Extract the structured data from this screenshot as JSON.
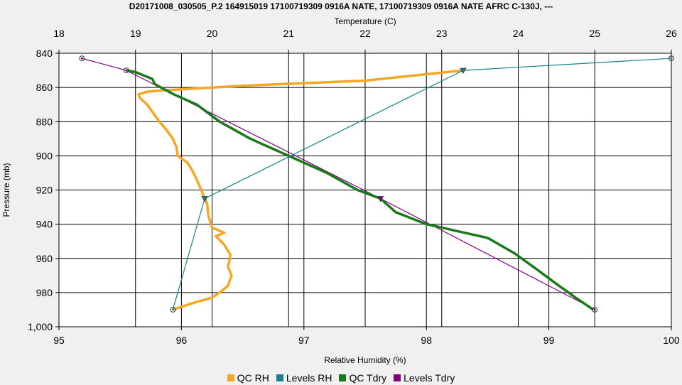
{
  "chart_data": {
    "type": "line",
    "title": "D20171008_030505_P.2 164915019 17100719309 0916A NATE, 17100719309 0916A NATE AFRC C-130J, ---",
    "top_axis": {
      "label": "Temperature (C)",
      "range": [
        18,
        26
      ],
      "ticks": [
        "18",
        "19",
        "20",
        "21",
        "22",
        "23",
        "24",
        "25",
        "26"
      ]
    },
    "bottom_axis": {
      "label": "Relative Humidity (%)",
      "range": [
        95,
        100
      ],
      "ticks": [
        "95",
        "96",
        "97",
        "98",
        "99",
        "100"
      ]
    },
    "y_axis": {
      "label": "Pressure (mb)",
      "range": [
        840,
        1000
      ],
      "inverted": true,
      "ticks": [
        "840",
        "860",
        "880",
        "900",
        "920",
        "940",
        "960",
        "980",
        "1,000"
      ]
    },
    "grid": true,
    "legend_position": "bottom",
    "series": [
      {
        "name": "QC RH",
        "axis": "rh",
        "color": "#f5a623",
        "points": [
          [
            95.93,
            990
          ],
          [
            96.1,
            986
          ],
          [
            96.25,
            983
          ],
          [
            96.33,
            979
          ],
          [
            96.38,
            976
          ],
          [
            96.41,
            970
          ],
          [
            96.38,
            965
          ],
          [
            96.4,
            958
          ],
          [
            96.35,
            952
          ],
          [
            96.28,
            947
          ],
          [
            96.35,
            945
          ],
          [
            96.25,
            942
          ],
          [
            96.22,
            935
          ],
          [
            96.21,
            928
          ],
          [
            96.19,
            925
          ],
          [
            96.15,
            918
          ],
          [
            96.1,
            910
          ],
          [
            96.05,
            904
          ],
          [
            95.97,
            900
          ],
          [
            95.96,
            895
          ],
          [
            95.93,
            890
          ],
          [
            95.88,
            885
          ],
          [
            95.82,
            880
          ],
          [
            95.77,
            875
          ],
          [
            95.72,
            870
          ],
          [
            95.66,
            866
          ],
          [
            95.65,
            864
          ],
          [
            95.72,
            862.5
          ],
          [
            95.86,
            861.6
          ],
          [
            96.0,
            861.1
          ],
          [
            96.5,
            859
          ],
          [
            97.5,
            856
          ],
          [
            98.3,
            850
          ]
        ]
      },
      {
        "name": "Levels RH",
        "axis": "rh",
        "color": "#17808c",
        "points": [
          [
            95.93,
            990
          ],
          [
            96.19,
            925
          ],
          [
            98.3,
            850
          ],
          [
            100,
            843
          ]
        ]
      },
      {
        "name": "QC Tdry",
        "axis": "temp",
        "color": "#1a7a1a",
        "points": [
          [
            24.98,
            990
          ],
          [
            24.75,
            983
          ],
          [
            24.5,
            975
          ],
          [
            24.2,
            965
          ],
          [
            23.95,
            957
          ],
          [
            23.6,
            948
          ],
          [
            23.3,
            945
          ],
          [
            22.8,
            940
          ],
          [
            22.4,
            933
          ],
          [
            22.2,
            925
          ],
          [
            21.9,
            920
          ],
          [
            21.5,
            910
          ],
          [
            21.0,
            900
          ],
          [
            20.5,
            890
          ],
          [
            20.1,
            880
          ],
          [
            19.8,
            870
          ],
          [
            19.5,
            864
          ],
          [
            19.25,
            858
          ],
          [
            19.22,
            855
          ],
          [
            19.0,
            851
          ],
          [
            18.88,
            850
          ]
        ]
      },
      {
        "name": "Levels Tdry",
        "axis": "temp",
        "color": "#800080",
        "points": [
          [
            25.0,
            990
          ],
          [
            22.2,
            925
          ],
          [
            18.88,
            850
          ],
          [
            18.3,
            843
          ]
        ]
      }
    ],
    "markers": {
      "Levels RH": [
        [
          95.93,
          990,
          "o"
        ],
        [
          96.19,
          925,
          "v"
        ],
        [
          98.3,
          850,
          "v"
        ],
        [
          100,
          843,
          "o"
        ]
      ],
      "Levels Tdry": [
        [
          25.0,
          990,
          "o"
        ],
        [
          22.2,
          925,
          "v"
        ],
        [
          18.88,
          850,
          "o"
        ],
        [
          18.3,
          843,
          "o"
        ]
      ]
    }
  }
}
